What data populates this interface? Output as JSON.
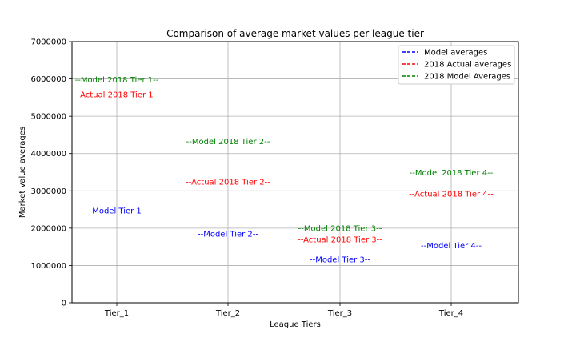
{
  "chart_data": {
    "type": "scatter",
    "title": "Comparison of average market values per league tier",
    "xlabel": "League Tiers",
    "ylabel": "Market value averages",
    "categories": [
      "Tier_1",
      "Tier_2",
      "Tier_3",
      "Tier_4"
    ],
    "ylim": [
      0,
      7000000
    ],
    "yticks": [
      0,
      1000000,
      2000000,
      3000000,
      4000000,
      5000000,
      6000000,
      7000000
    ],
    "ytick_labels": [
      "0",
      "1000000",
      "2000000",
      "3000000",
      "4000000",
      "5000000",
      "6000000",
      "7000000"
    ],
    "grid": true,
    "legend_position": "top-right",
    "series": [
      {
        "name": "Model averages",
        "color": "#0000ff",
        "values": [
          2470000,
          1850000,
          1160000,
          1530000
        ],
        "labels": [
          "--Model Tier 1--",
          "--Model Tier 2--",
          "--Model Tier 3--",
          "--Model Tier 4--"
        ]
      },
      {
        "name": "2018 Actual averages",
        "color": "#ff0000",
        "values": [
          5580000,
          3240000,
          1700000,
          2920000
        ],
        "labels": [
          "--Actual 2018 Tier 1--",
          "--Actual 2018 Tier 2--",
          "--Actual 2018 Tier 3--",
          "--Actual 2018 Tier 4--"
        ]
      },
      {
        "name": "2018 Model Averages",
        "color": "#008000",
        "values": [
          5980000,
          4330000,
          2000000,
          3490000
        ],
        "labels": [
          "--Model 2018 Tier 1--",
          "--Model 2018 Tier 2--",
          "--Model 2018 Tier 3--",
          "--Model 2018 Tier 4--"
        ]
      }
    ]
  }
}
